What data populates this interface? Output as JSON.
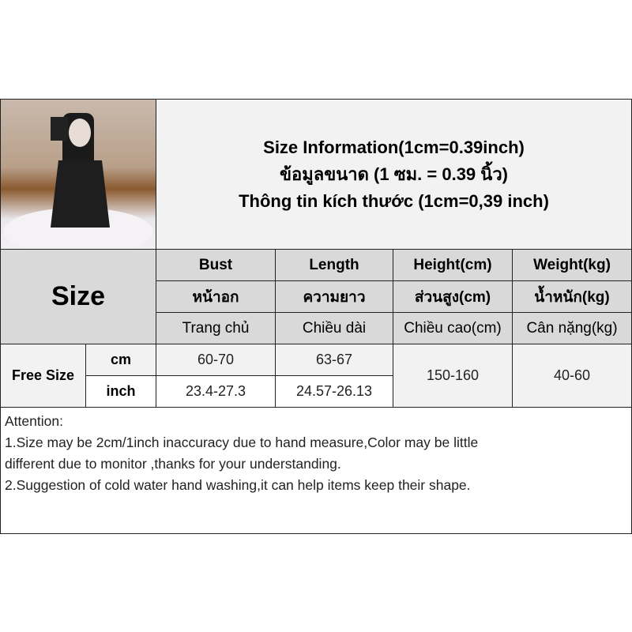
{
  "title": {
    "line1": "Size Information(1cm=0.39inch)",
    "line2": "ข้อมูลขนาด (1 ซม. = 0.39 นิ้ว)",
    "line3": "Thông tin kích thước (1cm=0,39 inch)"
  },
  "size_label": "Size",
  "columns": [
    {
      "en": "Bust",
      "th": "หน้าอก",
      "vi": "Trang chủ"
    },
    {
      "en": "Length",
      "th": "ความยาว",
      "vi": "Chiều dài"
    },
    {
      "en": "Height(cm)",
      "th": "ส่วนสูง(cm)",
      "vi": "Chiều cao(cm)"
    },
    {
      "en": "Weight(kg)",
      "th": "น้ำหนัก(kg)",
      "vi": "Cân nặng(kg)"
    }
  ],
  "row": {
    "size": "Free Size",
    "cm_label": "cm",
    "inch_label": "inch",
    "bust_cm": "60-70",
    "length_cm": "63-67",
    "bust_inch": "23.4-27.3",
    "length_inch": "24.57-26.13",
    "height": "150-160",
    "weight": "40-60"
  },
  "attention": {
    "heading": "Attention:",
    "line1": "1.Size may be 2cm/1inch inaccuracy due to hand measure,Color may be little",
    "line2": "different due to monitor ,thanks for your understanding.",
    "line3": "2.Suggestion of cold water hand washing,it can help items keep their shape."
  }
}
